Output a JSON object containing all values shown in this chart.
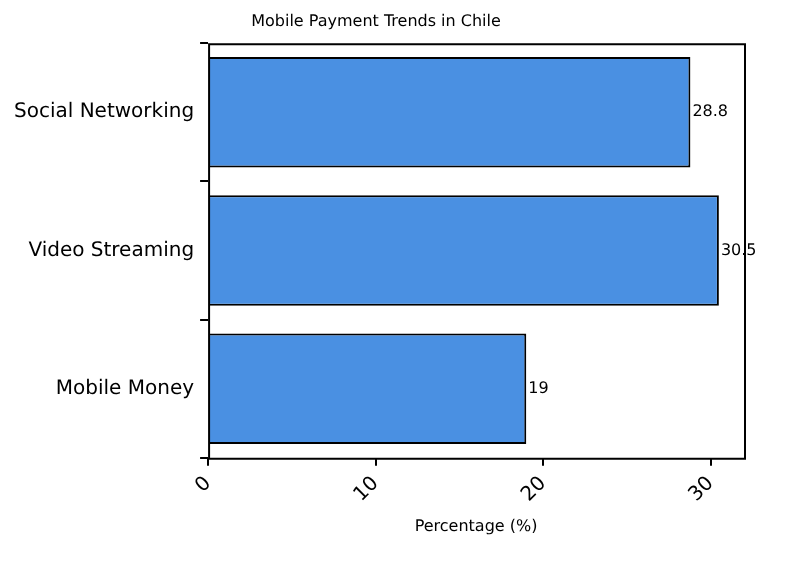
{
  "chart_data": {
    "type": "bar",
    "orientation": "horizontal",
    "title": "Mobile Payment Trends in Chile",
    "xlabel": "Percentage (%)",
    "categories": [
      "Social Networking",
      "Video Streaming",
      "Mobile Money"
    ],
    "values": [
      28.8,
      30.5,
      19
    ],
    "color": "#4a90e2",
    "xlim": [
      0,
      32
    ],
    "xticks": [
      0,
      10,
      20,
      30
    ],
    "grid": false,
    "legend": false,
    "data_labels": true
  }
}
